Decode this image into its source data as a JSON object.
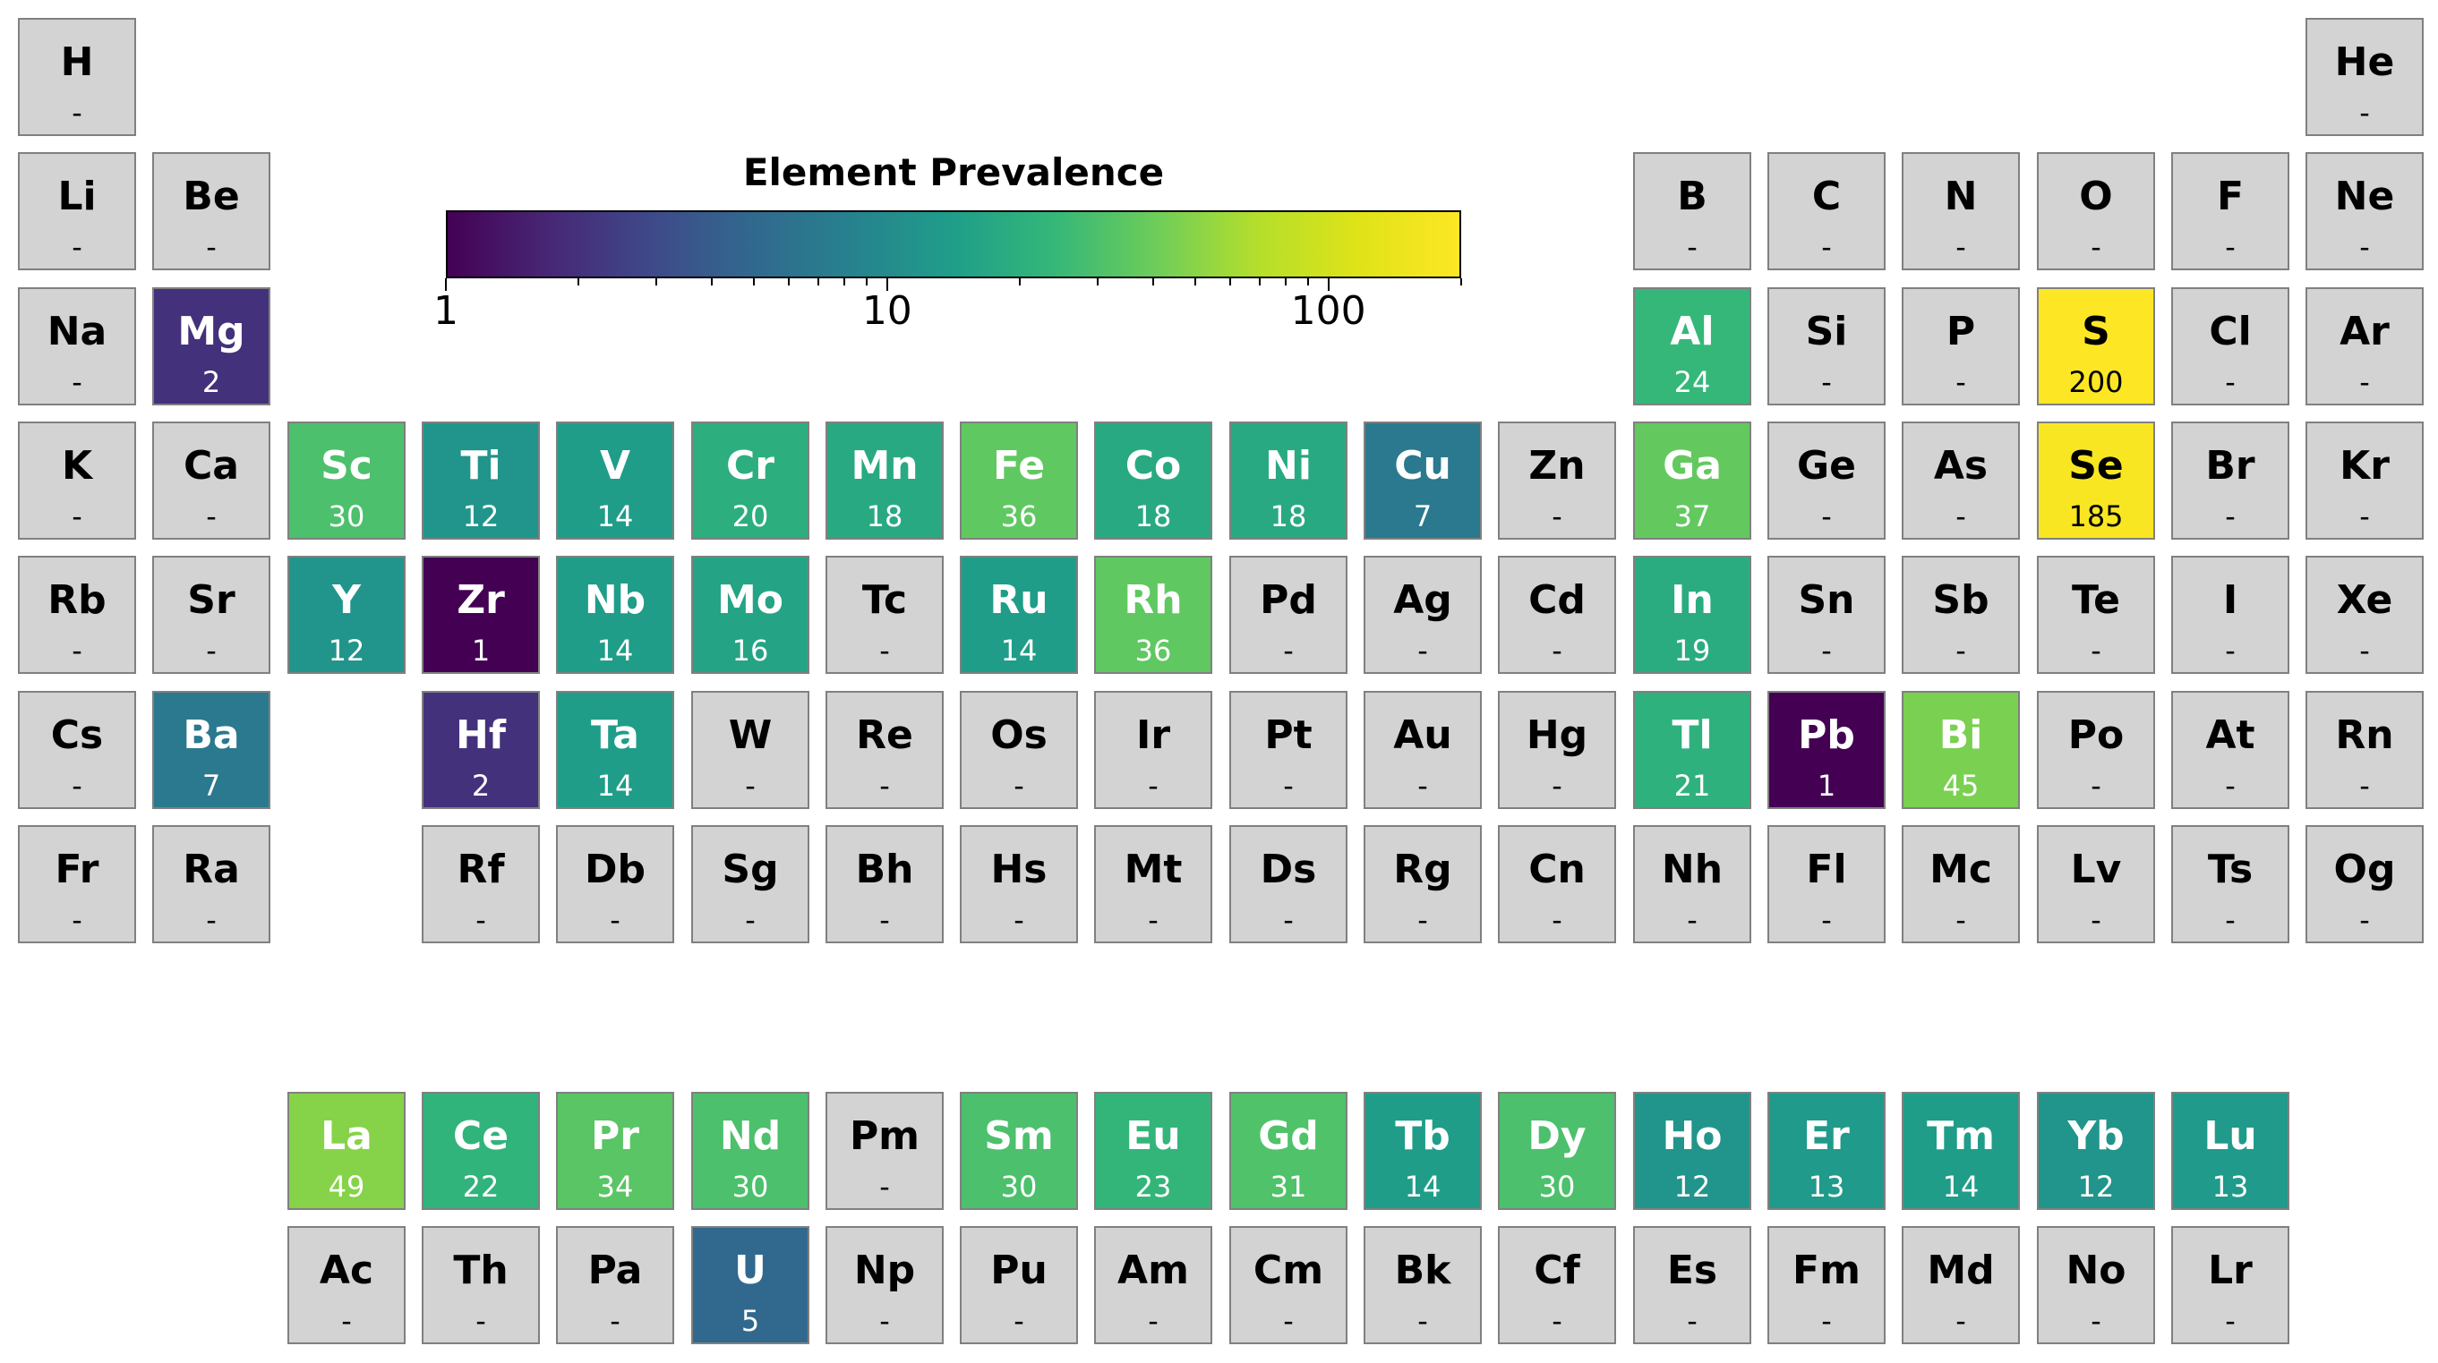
{
  "chart_data": {
    "type": "heatmap",
    "title": "Element Prevalence",
    "colorbar": {
      "scale": "log",
      "range": [
        1,
        200
      ],
      "tick_labels": [
        "1",
        "10",
        "100"
      ],
      "colormap": "viridis"
    },
    "missing_label": "-",
    "missing_color": "#d3d3d3",
    "elements": [
      {
        "symbol": "H",
        "value": null,
        "row": 1,
        "col": 1
      },
      {
        "symbol": "He",
        "value": null,
        "row": 1,
        "col": 18
      },
      {
        "symbol": "Li",
        "value": null,
        "row": 2,
        "col": 1
      },
      {
        "symbol": "Be",
        "value": null,
        "row": 2,
        "col": 2
      },
      {
        "symbol": "B",
        "value": null,
        "row": 2,
        "col": 13
      },
      {
        "symbol": "C",
        "value": null,
        "row": 2,
        "col": 14
      },
      {
        "symbol": "N",
        "value": null,
        "row": 2,
        "col": 15
      },
      {
        "symbol": "O",
        "value": null,
        "row": 2,
        "col": 16
      },
      {
        "symbol": "F",
        "value": null,
        "row": 2,
        "col": 17
      },
      {
        "symbol": "Ne",
        "value": null,
        "row": 2,
        "col": 18
      },
      {
        "symbol": "Na",
        "value": null,
        "row": 3,
        "col": 1
      },
      {
        "symbol": "Mg",
        "value": 2,
        "row": 3,
        "col": 2
      },
      {
        "symbol": "Al",
        "value": 24,
        "row": 3,
        "col": 13
      },
      {
        "symbol": "Si",
        "value": null,
        "row": 3,
        "col": 14
      },
      {
        "symbol": "P",
        "value": null,
        "row": 3,
        "col": 15
      },
      {
        "symbol": "S",
        "value": 200,
        "row": 3,
        "col": 16
      },
      {
        "symbol": "Cl",
        "value": null,
        "row": 3,
        "col": 17
      },
      {
        "symbol": "Ar",
        "value": null,
        "row": 3,
        "col": 18
      },
      {
        "symbol": "K",
        "value": null,
        "row": 4,
        "col": 1
      },
      {
        "symbol": "Ca",
        "value": null,
        "row": 4,
        "col": 2
      },
      {
        "symbol": "Sc",
        "value": 30,
        "row": 4,
        "col": 3
      },
      {
        "symbol": "Ti",
        "value": 12,
        "row": 4,
        "col": 4
      },
      {
        "symbol": "V",
        "value": 14,
        "row": 4,
        "col": 5
      },
      {
        "symbol": "Cr",
        "value": 20,
        "row": 4,
        "col": 6
      },
      {
        "symbol": "Mn",
        "value": 18,
        "row": 4,
        "col": 7
      },
      {
        "symbol": "Fe",
        "value": 36,
        "row": 4,
        "col": 8
      },
      {
        "symbol": "Co",
        "value": 18,
        "row": 4,
        "col": 9
      },
      {
        "symbol": "Ni",
        "value": 18,
        "row": 4,
        "col": 10
      },
      {
        "symbol": "Cu",
        "value": 7,
        "row": 4,
        "col": 11
      },
      {
        "symbol": "Zn",
        "value": null,
        "row": 4,
        "col": 12
      },
      {
        "symbol": "Ga",
        "value": 37,
        "row": 4,
        "col": 13
      },
      {
        "symbol": "Ge",
        "value": null,
        "row": 4,
        "col": 14
      },
      {
        "symbol": "As",
        "value": null,
        "row": 4,
        "col": 15
      },
      {
        "symbol": "Se",
        "value": 185,
        "row": 4,
        "col": 16
      },
      {
        "symbol": "Br",
        "value": null,
        "row": 4,
        "col": 17
      },
      {
        "symbol": "Kr",
        "value": null,
        "row": 4,
        "col": 18
      },
      {
        "symbol": "Rb",
        "value": null,
        "row": 5,
        "col": 1
      },
      {
        "symbol": "Sr",
        "value": null,
        "row": 5,
        "col": 2
      },
      {
        "symbol": "Y",
        "value": 12,
        "row": 5,
        "col": 3
      },
      {
        "symbol": "Zr",
        "value": 1,
        "row": 5,
        "col": 4
      },
      {
        "symbol": "Nb",
        "value": 14,
        "row": 5,
        "col": 5
      },
      {
        "symbol": "Mo",
        "value": 16,
        "row": 5,
        "col": 6
      },
      {
        "symbol": "Tc",
        "value": null,
        "row": 5,
        "col": 7
      },
      {
        "symbol": "Ru",
        "value": 14,
        "row": 5,
        "col": 8
      },
      {
        "symbol": "Rh",
        "value": 36,
        "row": 5,
        "col": 9
      },
      {
        "symbol": "Pd",
        "value": null,
        "row": 5,
        "col": 10
      },
      {
        "symbol": "Ag",
        "value": null,
        "row": 5,
        "col": 11
      },
      {
        "symbol": "Cd",
        "value": null,
        "row": 5,
        "col": 12
      },
      {
        "symbol": "In",
        "value": 19,
        "row": 5,
        "col": 13
      },
      {
        "symbol": "Sn",
        "value": null,
        "row": 5,
        "col": 14
      },
      {
        "symbol": "Sb",
        "value": null,
        "row": 5,
        "col": 15
      },
      {
        "symbol": "Te",
        "value": null,
        "row": 5,
        "col": 16
      },
      {
        "symbol": "I",
        "value": null,
        "row": 5,
        "col": 17
      },
      {
        "symbol": "Xe",
        "value": null,
        "row": 5,
        "col": 18
      },
      {
        "symbol": "Cs",
        "value": null,
        "row": 6,
        "col": 1
      },
      {
        "symbol": "Ba",
        "value": 7,
        "row": 6,
        "col": 2
      },
      {
        "symbol": "Hf",
        "value": 2,
        "row": 6,
        "col": 4
      },
      {
        "symbol": "Ta",
        "value": 14,
        "row": 6,
        "col": 5
      },
      {
        "symbol": "W",
        "value": null,
        "row": 6,
        "col": 6
      },
      {
        "symbol": "Re",
        "value": null,
        "row": 6,
        "col": 7
      },
      {
        "symbol": "Os",
        "value": null,
        "row": 6,
        "col": 8
      },
      {
        "symbol": "Ir",
        "value": null,
        "row": 6,
        "col": 9
      },
      {
        "symbol": "Pt",
        "value": null,
        "row": 6,
        "col": 10
      },
      {
        "symbol": "Au",
        "value": null,
        "row": 6,
        "col": 11
      },
      {
        "symbol": "Hg",
        "value": null,
        "row": 6,
        "col": 12
      },
      {
        "symbol": "Tl",
        "value": 21,
        "row": 6,
        "col": 13
      },
      {
        "symbol": "Pb",
        "value": 1,
        "row": 6,
        "col": 14
      },
      {
        "symbol": "Bi",
        "value": 45,
        "row": 6,
        "col": 15
      },
      {
        "symbol": "Po",
        "value": null,
        "row": 6,
        "col": 16
      },
      {
        "symbol": "At",
        "value": null,
        "row": 6,
        "col": 17
      },
      {
        "symbol": "Rn",
        "value": null,
        "row": 6,
        "col": 18
      },
      {
        "symbol": "Fr",
        "value": null,
        "row": 7,
        "col": 1
      },
      {
        "symbol": "Ra",
        "value": null,
        "row": 7,
        "col": 2
      },
      {
        "symbol": "Rf",
        "value": null,
        "row": 7,
        "col": 4
      },
      {
        "symbol": "Db",
        "value": null,
        "row": 7,
        "col": 5
      },
      {
        "symbol": "Sg",
        "value": null,
        "row": 7,
        "col": 6
      },
      {
        "symbol": "Bh",
        "value": null,
        "row": 7,
        "col": 7
      },
      {
        "symbol": "Hs",
        "value": null,
        "row": 7,
        "col": 8
      },
      {
        "symbol": "Mt",
        "value": null,
        "row": 7,
        "col": 9
      },
      {
        "symbol": "Ds",
        "value": null,
        "row": 7,
        "col": 10
      },
      {
        "symbol": "Rg",
        "value": null,
        "row": 7,
        "col": 11
      },
      {
        "symbol": "Cn",
        "value": null,
        "row": 7,
        "col": 12
      },
      {
        "symbol": "Nh",
        "value": null,
        "row": 7,
        "col": 13
      },
      {
        "symbol": "Fl",
        "value": null,
        "row": 7,
        "col": 14
      },
      {
        "symbol": "Mc",
        "value": null,
        "row": 7,
        "col": 15
      },
      {
        "symbol": "Lv",
        "value": null,
        "row": 7,
        "col": 16
      },
      {
        "symbol": "Ts",
        "value": null,
        "row": 7,
        "col": 17
      },
      {
        "symbol": "Og",
        "value": null,
        "row": 7,
        "col": 18
      },
      {
        "symbol": "La",
        "value": 49,
        "row": 9,
        "col": 3
      },
      {
        "symbol": "Ce",
        "value": 22,
        "row": 9,
        "col": 4
      },
      {
        "symbol": "Pr",
        "value": 34,
        "row": 9,
        "col": 5
      },
      {
        "symbol": "Nd",
        "value": 30,
        "row": 9,
        "col": 6
      },
      {
        "symbol": "Pm",
        "value": null,
        "row": 9,
        "col": 7
      },
      {
        "symbol": "Sm",
        "value": 30,
        "row": 9,
        "col": 8
      },
      {
        "symbol": "Eu",
        "value": 23,
        "row": 9,
        "col": 9
      },
      {
        "symbol": "Gd",
        "value": 31,
        "row": 9,
        "col": 10
      },
      {
        "symbol": "Tb",
        "value": 14,
        "row": 9,
        "col": 11
      },
      {
        "symbol": "Dy",
        "value": 30,
        "row": 9,
        "col": 12
      },
      {
        "symbol": "Ho",
        "value": 12,
        "row": 9,
        "col": 13
      },
      {
        "symbol": "Er",
        "value": 13,
        "row": 9,
        "col": 14
      },
      {
        "symbol": "Tm",
        "value": 14,
        "row": 9,
        "col": 15
      },
      {
        "symbol": "Yb",
        "value": 12,
        "row": 9,
        "col": 16
      },
      {
        "symbol": "Lu",
        "value": 13,
        "row": 9,
        "col": 17
      },
      {
        "symbol": "Ac",
        "value": null,
        "row": 10,
        "col": 3
      },
      {
        "symbol": "Th",
        "value": null,
        "row": 10,
        "col": 4
      },
      {
        "symbol": "Pa",
        "value": null,
        "row": 10,
        "col": 5
      },
      {
        "symbol": "U",
        "value": 5,
        "row": 10,
        "col": 6
      },
      {
        "symbol": "Np",
        "value": null,
        "row": 10,
        "col": 7
      },
      {
        "symbol": "Pu",
        "value": null,
        "row": 10,
        "col": 8
      },
      {
        "symbol": "Am",
        "value": null,
        "row": 10,
        "col": 9
      },
      {
        "symbol": "Cm",
        "value": null,
        "row": 10,
        "col": 10
      },
      {
        "symbol": "Bk",
        "value": null,
        "row": 10,
        "col": 11
      },
      {
        "symbol": "Cf",
        "value": null,
        "row": 10,
        "col": 12
      },
      {
        "symbol": "Es",
        "value": null,
        "row": 10,
        "col": 13
      },
      {
        "symbol": "Fm",
        "value": null,
        "row": 10,
        "col": 14
      },
      {
        "symbol": "Md",
        "value": null,
        "row": 10,
        "col": 15
      },
      {
        "symbol": "No",
        "value": null,
        "row": 10,
        "col": 16
      },
      {
        "symbol": "Lr",
        "value": null,
        "row": 10,
        "col": 17
      }
    ]
  }
}
